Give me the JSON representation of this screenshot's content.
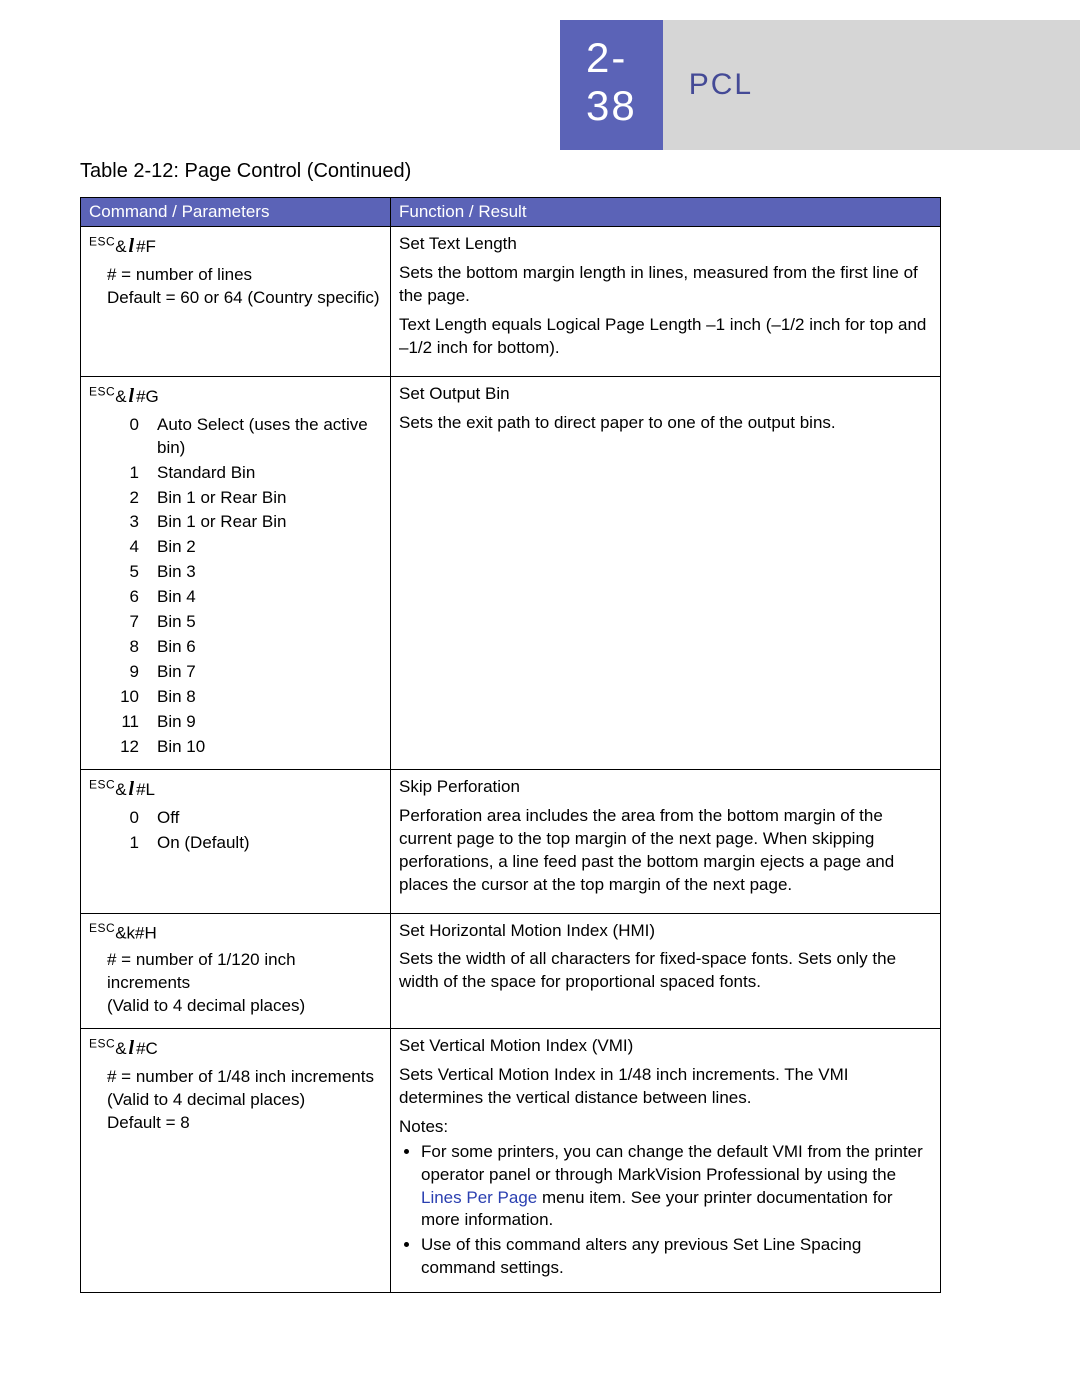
{
  "header": {
    "page_number": "2-38",
    "section": "PCL",
    "page_bg": "#5b63b7",
    "page_fg": "#ffffff",
    "section_bg": "#d6d6d6",
    "section_fg": "#444a96"
  },
  "table": {
    "caption": "Table 2-12:  Page Control (Continued)",
    "header_bg": "#5b63b7",
    "header_fg": "#ffffff",
    "border_color": "#000000",
    "columns": {
      "command": "Command / Parameters",
      "function": "Function / Result"
    },
    "rows": [
      {
        "cmd_prefix": "ESC",
        "cmd_body": "&",
        "cmd_script": "l",
        "cmd_suffix": "#F",
        "param_lines": [
          "# = number of lines",
          "Default = 60 or 64 (Country specific)"
        ],
        "fn_title": "Set Text Length",
        "fn_paras": [
          "Sets the bottom margin length in lines, measured from the first line of the page.",
          "Text Length equals Logical Page Length –1 inch (–1/2 inch for top and –1/2 inch for bottom)."
        ]
      },
      {
        "cmd_prefix": "ESC",
        "cmd_body": "&",
        "cmd_script": "l",
        "cmd_suffix": "#G",
        "param_pairs": [
          [
            "0",
            "Auto Select (uses the active bin)"
          ],
          [
            "1",
            "Standard Bin"
          ],
          [
            "2",
            "Bin 1 or Rear Bin"
          ],
          [
            "3",
            "Bin 1 or Rear Bin"
          ],
          [
            "4",
            "Bin 2"
          ],
          [
            "5",
            "Bin 3"
          ],
          [
            "6",
            "Bin 4"
          ],
          [
            "7",
            "Bin 5"
          ],
          [
            "8",
            "Bin 6"
          ],
          [
            "9",
            "Bin 7"
          ],
          [
            "10",
            "Bin 8"
          ],
          [
            "11",
            "Bin 9"
          ],
          [
            "12",
            "Bin 10"
          ]
        ],
        "fn_title": "Set Output Bin",
        "fn_paras": [
          "Sets the exit path to direct paper to one of the output bins."
        ]
      },
      {
        "cmd_prefix": "ESC",
        "cmd_body": "&",
        "cmd_script": "l",
        "cmd_suffix": "#L",
        "param_pairs": [
          [
            "0",
            "Off"
          ],
          [
            "1",
            "On (Default)"
          ]
        ],
        "fn_title": "Skip Perforation",
        "fn_paras": [
          "Perforation area includes the area from the bottom margin of the current page to the top margin of the next page. When skipping perforations, a line feed past the bottom margin ejects a page and places the cursor at the top margin of the next page."
        ]
      },
      {
        "cmd_prefix": "ESC",
        "cmd_body": "&k#H",
        "cmd_script": "",
        "cmd_suffix": "",
        "param_lines": [
          "# = number of 1/120 inch increments",
          "(Valid to 4 decimal places)"
        ],
        "fn_title": "Set Horizontal Motion Index (HMI)",
        "fn_paras": [
          "Sets the width of all characters for fixed-space fonts. Sets only the width of the space for proportional spaced fonts."
        ]
      },
      {
        "cmd_prefix": "ESC",
        "cmd_body": "&",
        "cmd_script": "l",
        "cmd_suffix": "#C",
        "param_lines": [
          "# = number of 1/48 inch increments",
          "(Valid to 4 decimal places)",
          "Default = 8"
        ],
        "fn_title": "Set Vertical Motion Index (VMI)",
        "fn_paras": [
          "Sets Vertical Motion Index in 1/48 inch increments. The VMI determines the vertical distance between lines."
        ],
        "notes_label": "Notes:",
        "notes": [
          {
            "pre": "For some printers, you can change the default VMI from the printer operator panel or through MarkVision Professional by using the ",
            "menu": "Lines Per Page",
            "post": " menu item. See your printer documentation for more information."
          },
          {
            "pre": "Use of this command alters any previous Set Line Spacing command settings.",
            "menu": "",
            "post": ""
          }
        ]
      }
    ]
  }
}
